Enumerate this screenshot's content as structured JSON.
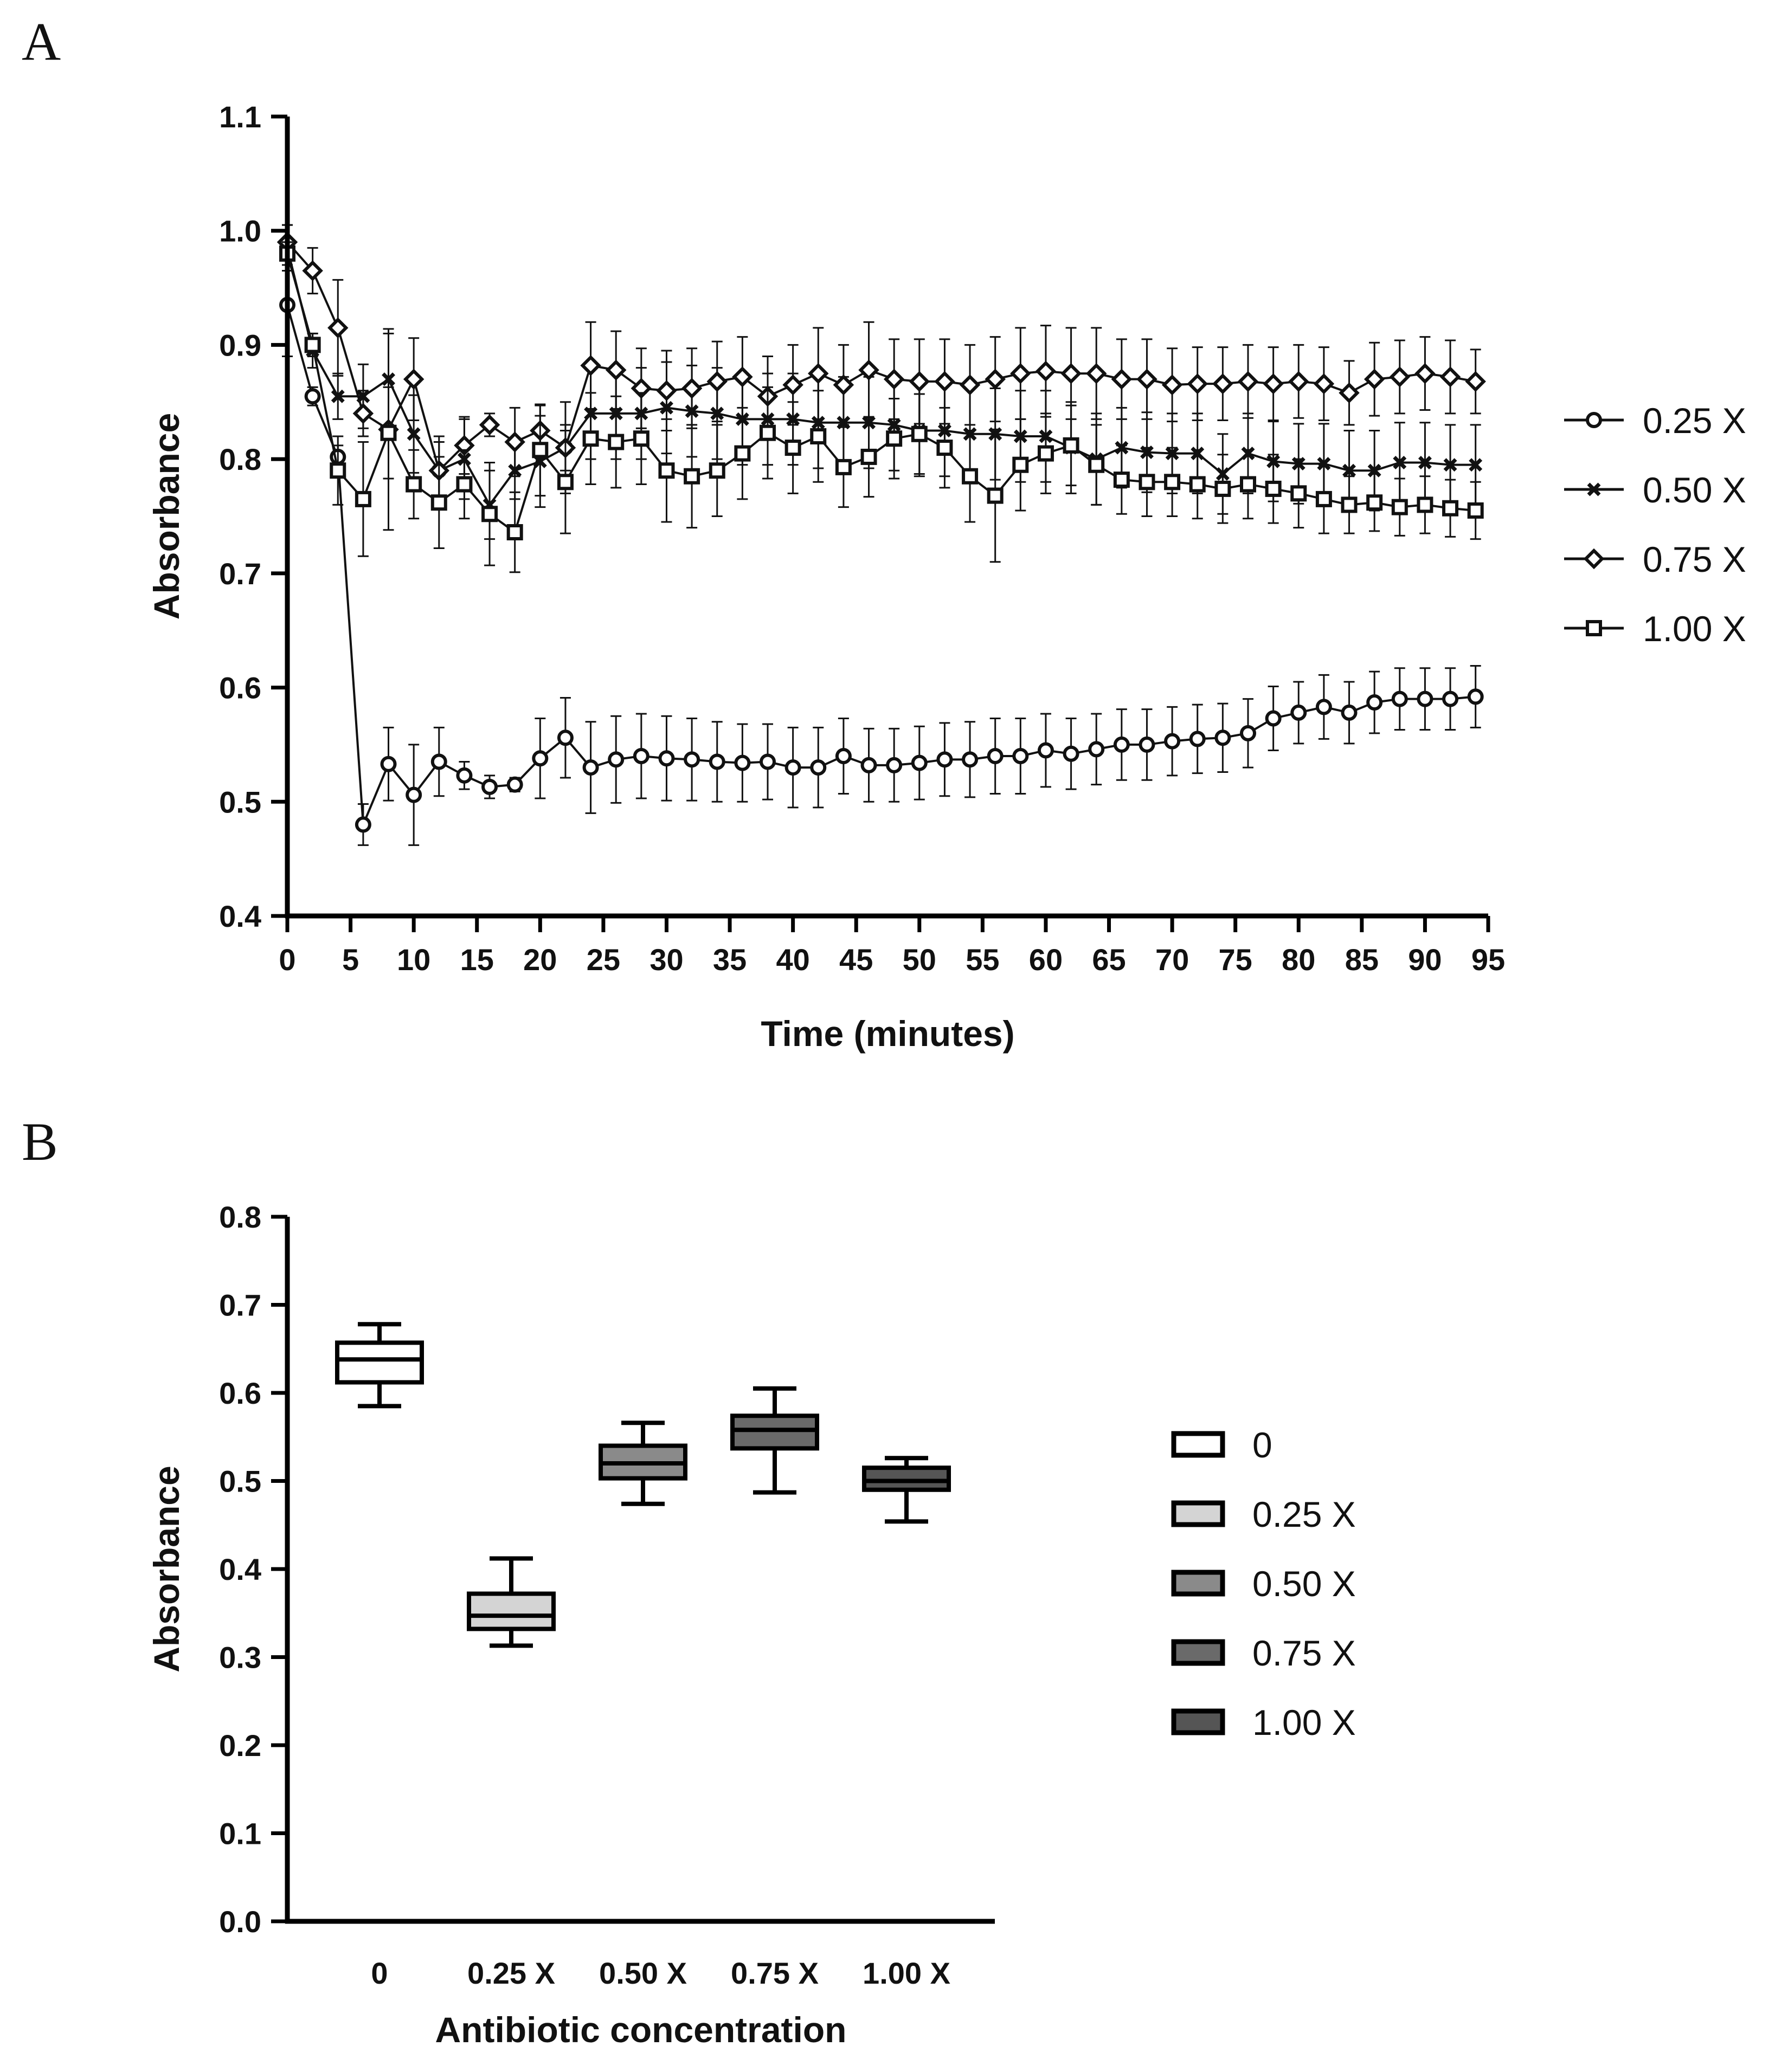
{
  "chart_data": [
    {
      "panel": "A",
      "type": "line",
      "title": "",
      "xlabel": "Time (minutes)",
      "ylabel": "Absorbance",
      "xlim": [
        0,
        95
      ],
      "ylim": [
        0.4,
        1.1
      ],
      "xticks": [
        0,
        5,
        10,
        15,
        20,
        25,
        30,
        35,
        40,
        45,
        50,
        55,
        60,
        65,
        70,
        75,
        80,
        85,
        90,
        95
      ],
      "yticks": [
        0.4,
        0.5,
        0.6,
        0.7,
        0.8,
        0.9,
        1.0,
        1.1
      ],
      "ytick_labels": [
        "0.4",
        "0.5",
        "0.6",
        "0.7",
        "0.8",
        "0.9",
        "1.0",
        "1.1"
      ],
      "grid": false,
      "legend_position": "right",
      "x": [
        0,
        2,
        4,
        6,
        8,
        10,
        12,
        14,
        16,
        18,
        20,
        22,
        24,
        26,
        28,
        30,
        32,
        34,
        36,
        38,
        40,
        42,
        44,
        46,
        48,
        50,
        52,
        54,
        56,
        58,
        60,
        62,
        64,
        66,
        68,
        70,
        72,
        74,
        76,
        78,
        80,
        82,
        84,
        86,
        88,
        90,
        92,
        94
      ],
      "series": [
        {
          "name": "0.25 X",
          "marker": "circle",
          "values": [
            0.935,
            0.855,
            0.802,
            0.48,
            0.533,
            0.506,
            0.535,
            0.523,
            0.513,
            0.515,
            0.538,
            0.556,
            0.53,
            0.537,
            0.54,
            0.538,
            0.537,
            0.535,
            0.534,
            0.535,
            0.53,
            0.53,
            0.54,
            0.532,
            0.532,
            0.534,
            0.537,
            0.537,
            0.54,
            0.54,
            0.545,
            0.542,
            0.546,
            0.55,
            0.55,
            0.553,
            0.555,
            0.556,
            0.56,
            0.573,
            0.578,
            0.583,
            0.578,
            0.587,
            0.59,
            0.59,
            0.59,
            0.592
          ],
          "errors": [
            0.045,
            0.008,
            0.01,
            0.018,
            0.032,
            0.044,
            0.03,
            0.012,
            0.01,
            0.006,
            0.035,
            0.035,
            0.04,
            0.038,
            0.037,
            0.037,
            0.036,
            0.035,
            0.034,
            0.033,
            0.035,
            0.035,
            0.033,
            0.032,
            0.032,
            0.032,
            0.032,
            0.033,
            0.033,
            0.033,
            0.032,
            0.031,
            0.031,
            0.031,
            0.031,
            0.03,
            0.03,
            0.03,
            0.03,
            0.028,
            0.027,
            0.028,
            0.027,
            0.027,
            0.027,
            0.027,
            0.027,
            0.027
          ]
        },
        {
          "name": "0.50 X",
          "marker": "x",
          "values": [
            0.985,
            0.895,
            0.855,
            0.855,
            0.87,
            0.822,
            0.79,
            0.8,
            0.76,
            0.79,
            0.798,
            0.81,
            0.84,
            0.84,
            0.84,
            0.845,
            0.842,
            0.84,
            0.835,
            0.835,
            0.835,
            0.832,
            0.832,
            0.832,
            0.83,
            0.825,
            0.825,
            0.822,
            0.822,
            0.82,
            0.82,
            0.81,
            0.8,
            0.81,
            0.806,
            0.805,
            0.805,
            0.787,
            0.805,
            0.798,
            0.796,
            0.796,
            0.79,
            0.79,
            0.797,
            0.797,
            0.795,
            0.795
          ],
          "errors": [
            0.02,
            0.015,
            0.02,
            0.028,
            0.04,
            0.034,
            0.025,
            0.035,
            0.03,
            0.025,
            0.04,
            0.04,
            0.04,
            0.04,
            0.04,
            0.04,
            0.04,
            0.04,
            0.04,
            0.04,
            0.04,
            0.04,
            0.04,
            0.04,
            0.04,
            0.04,
            0.04,
            0.04,
            0.04,
            0.04,
            0.04,
            0.04,
            0.04,
            0.035,
            0.035,
            0.035,
            0.035,
            0.035,
            0.035,
            0.035,
            0.035,
            0.035,
            0.035,
            0.035,
            0.035,
            0.035,
            0.035,
            0.035
          ]
        },
        {
          "name": "0.75 X",
          "marker": "diamond",
          "values": [
            0.99,
            0.965,
            0.915,
            0.84,
            0.826,
            0.87,
            0.79,
            0.812,
            0.83,
            0.815,
            0.825,
            0.81,
            0.882,
            0.878,
            0.862,
            0.86,
            0.862,
            0.868,
            0.872,
            0.855,
            0.865,
            0.875,
            0.865,
            0.878,
            0.87,
            0.868,
            0.868,
            0.865,
            0.87,
            0.875,
            0.877,
            0.875,
            0.875,
            0.87,
            0.87,
            0.865,
            0.866,
            0.866,
            0.868,
            0.866,
            0.868,
            0.866,
            0.858,
            0.87,
            0.872,
            0.875,
            0.872,
            0.868
          ],
          "errors": [
            0.015,
            0.02,
            0.042,
            0.02,
            0.088,
            0.036,
            0.03,
            0.025,
            0.01,
            0.03,
            0.022,
            0.02,
            0.038,
            0.034,
            0.035,
            0.035,
            0.035,
            0.035,
            0.035,
            0.035,
            0.035,
            0.04,
            0.035,
            0.042,
            0.035,
            0.037,
            0.037,
            0.035,
            0.037,
            0.04,
            0.04,
            0.04,
            0.04,
            0.035,
            0.035,
            0.032,
            0.032,
            0.032,
            0.032,
            0.032,
            0.032,
            0.032,
            0.028,
            0.032,
            0.032,
            0.032,
            0.032,
            0.028
          ]
        },
        {
          "name": "1.00 X",
          "marker": "square",
          "values": [
            0.98,
            0.9,
            0.79,
            0.765,
            0.823,
            0.778,
            0.762,
            0.778,
            0.752,
            0.736,
            0.808,
            0.78,
            0.818,
            0.815,
            0.818,
            0.79,
            0.785,
            0.79,
            0.805,
            0.823,
            0.81,
            0.82,
            0.793,
            0.802,
            0.818,
            0.822,
            0.81,
            0.785,
            0.768,
            0.795,
            0.805,
            0.812,
            0.795,
            0.782,
            0.78,
            0.78,
            0.778,
            0.774,
            0.778,
            0.774,
            0.77,
            0.765,
            0.76,
            0.762,
            0.758,
            0.76,
            0.757,
            0.755
          ],
          "errors": [
            0.01,
            0.01,
            0.03,
            0.05,
            0.04,
            0.03,
            0.04,
            0.03,
            0.045,
            0.035,
            0.04,
            0.045,
            0.04,
            0.04,
            0.04,
            0.045,
            0.045,
            0.04,
            0.04,
            0.04,
            0.04,
            0.04,
            0.035,
            0.035,
            0.035,
            0.035,
            0.035,
            0.04,
            0.058,
            0.04,
            0.035,
            0.035,
            0.035,
            0.03,
            0.03,
            0.03,
            0.03,
            0.03,
            0.03,
            0.03,
            0.03,
            0.03,
            0.025,
            0.025,
            0.025,
            0.025,
            0.025,
            0.025
          ]
        }
      ]
    },
    {
      "panel": "B",
      "type": "box",
      "title": "",
      "xlabel": "Antibiotic concentration",
      "ylabel": "Absorbance",
      "ylim": [
        0.0,
        0.8
      ],
      "yticks": [
        0.0,
        0.1,
        0.2,
        0.3,
        0.4,
        0.5,
        0.6,
        0.7,
        0.8
      ],
      "ytick_labels": [
        "0.0",
        "0.1",
        "0.2",
        "0.3",
        "0.4",
        "0.5",
        "0.6",
        "0.7",
        "0.8"
      ],
      "grid": false,
      "legend_position": "right",
      "categories": [
        "0",
        "0.25 X",
        "0.50 X",
        "0.75 X",
        "1.00 X"
      ],
      "boxes": [
        {
          "name": "0",
          "min": 0.585,
          "q1": 0.612,
          "median": 0.638,
          "q3": 0.657,
          "max": 0.678,
          "fill": "#ffffff"
        },
        {
          "name": "0.25 X",
          "min": 0.313,
          "q1": 0.332,
          "median": 0.347,
          "q3": 0.372,
          "max": 0.412,
          "fill": "#d4d4d4"
        },
        {
          "name": "0.50 X",
          "min": 0.474,
          "q1": 0.503,
          "median": 0.52,
          "q3": 0.54,
          "max": 0.566,
          "fill": "#8a8a8a"
        },
        {
          "name": "0.75 X",
          "min": 0.487,
          "q1": 0.537,
          "median": 0.558,
          "q3": 0.574,
          "max": 0.605,
          "fill": "#6a6a6a"
        },
        {
          "name": "1.00 X",
          "min": 0.454,
          "q1": 0.49,
          "median": 0.5,
          "q3": 0.515,
          "max": 0.526,
          "fill": "#555555"
        }
      ]
    }
  ]
}
